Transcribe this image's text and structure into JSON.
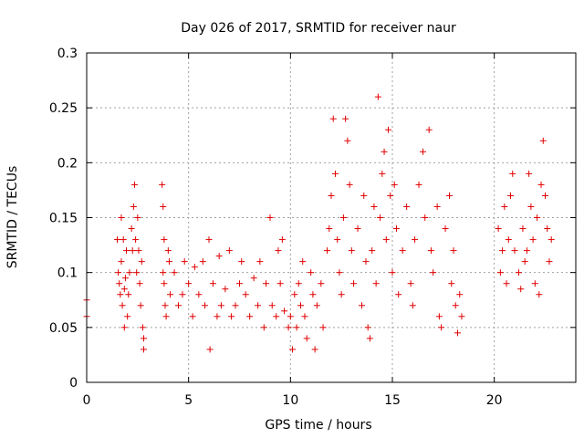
{
  "chart_data": {
    "type": "scatter",
    "title": "Day 026 of 2017, SRMTID for receiver naur",
    "xlabel": "GPS time / hours",
    "ylabel": "SRMTID / TECUs",
    "xlim": [
      0,
      24
    ],
    "ylim": [
      0,
      0.3
    ],
    "grid": true,
    "marker": "+",
    "color": "#e00000",
    "x_ticks": [
      "0",
      "5",
      "10",
      "15",
      "20"
    ],
    "x_tick_values": [
      0,
      5,
      10,
      15,
      20
    ],
    "y_ticks": [
      "0",
      "0.05",
      "0.1",
      "0.15",
      "0.2",
      "0.25",
      "0.3"
    ],
    "y_tick_values": [
      0,
      0.05,
      0.1,
      0.15,
      0.2,
      0.25,
      0.3
    ],
    "series": [
      {
        "name": "SRMTID",
        "points": [
          [
            0.0,
            0.075
          ],
          [
            0.0,
            0.06
          ],
          [
            1.5,
            0.13
          ],
          [
            1.55,
            0.1
          ],
          [
            1.6,
            0.09
          ],
          [
            1.65,
            0.08
          ],
          [
            1.7,
            0.15
          ],
          [
            1.7,
            0.11
          ],
          [
            1.75,
            0.07
          ],
          [
            1.8,
            0.13
          ],
          [
            1.85,
            0.05
          ],
          [
            1.85,
            0.085
          ],
          [
            1.9,
            0.095
          ],
          [
            1.95,
            0.12
          ],
          [
            2.0,
            0.06
          ],
          [
            2.05,
            0.08
          ],
          [
            2.1,
            0.1
          ],
          [
            2.2,
            0.14
          ],
          [
            2.25,
            0.12
          ],
          [
            2.3,
            0.16
          ],
          [
            2.35,
            0.18
          ],
          [
            2.4,
            0.13
          ],
          [
            2.45,
            0.1
          ],
          [
            2.5,
            0.15
          ],
          [
            2.55,
            0.12
          ],
          [
            2.6,
            0.09
          ],
          [
            2.65,
            0.07
          ],
          [
            2.7,
            0.11
          ],
          [
            2.75,
            0.05
          ],
          [
            2.8,
            0.03
          ],
          [
            2.8,
            0.04
          ],
          [
            3.7,
            0.18
          ],
          [
            3.75,
            0.16
          ],
          [
            3.8,
            0.13
          ],
          [
            3.75,
            0.1
          ],
          [
            3.8,
            0.09
          ],
          [
            3.85,
            0.07
          ],
          [
            3.9,
            0.06
          ],
          [
            4.0,
            0.12
          ],
          [
            4.05,
            0.11
          ],
          [
            4.1,
            0.08
          ],
          [
            4.3,
            0.1
          ],
          [
            4.5,
            0.07
          ],
          [
            4.7,
            0.08
          ],
          [
            4.8,
            0.11
          ],
          [
            5.0,
            0.09
          ],
          [
            5.2,
            0.06
          ],
          [
            5.3,
            0.105
          ],
          [
            5.5,
            0.08
          ],
          [
            5.7,
            0.11
          ],
          [
            5.8,
            0.07
          ],
          [
            6.0,
            0.13
          ],
          [
            6.05,
            0.03
          ],
          [
            6.2,
            0.09
          ],
          [
            6.4,
            0.06
          ],
          [
            6.5,
            0.115
          ],
          [
            6.6,
            0.07
          ],
          [
            6.8,
            0.085
          ],
          [
            7.0,
            0.12
          ],
          [
            7.1,
            0.06
          ],
          [
            7.3,
            0.07
          ],
          [
            7.5,
            0.09
          ],
          [
            7.6,
            0.11
          ],
          [
            7.8,
            0.08
          ],
          [
            8.0,
            0.06
          ],
          [
            8.2,
            0.095
          ],
          [
            8.4,
            0.07
          ],
          [
            8.5,
            0.11
          ],
          [
            8.7,
            0.05
          ],
          [
            8.8,
            0.09
          ],
          [
            9.0,
            0.15
          ],
          [
            9.1,
            0.07
          ],
          [
            9.3,
            0.06
          ],
          [
            9.4,
            0.12
          ],
          [
            9.5,
            0.09
          ],
          [
            9.6,
            0.13
          ],
          [
            9.7,
            0.065
          ],
          [
            9.9,
            0.05
          ],
          [
            10.0,
            0.06
          ],
          [
            10.1,
            0.03
          ],
          [
            10.2,
            0.08
          ],
          [
            10.3,
            0.05
          ],
          [
            10.4,
            0.09
          ],
          [
            10.5,
            0.07
          ],
          [
            10.6,
            0.11
          ],
          [
            10.7,
            0.06
          ],
          [
            10.8,
            0.04
          ],
          [
            11.0,
            0.1
          ],
          [
            11.1,
            0.08
          ],
          [
            11.2,
            0.03
          ],
          [
            11.3,
            0.07
          ],
          [
            11.5,
            0.09
          ],
          [
            11.6,
            0.05
          ],
          [
            11.8,
            0.12
          ],
          [
            11.9,
            0.14
          ],
          [
            12.0,
            0.17
          ],
          [
            12.1,
            0.24
          ],
          [
            12.2,
            0.19
          ],
          [
            12.3,
            0.13
          ],
          [
            12.4,
            0.1
          ],
          [
            12.5,
            0.08
          ],
          [
            12.6,
            0.15
          ],
          [
            12.7,
            0.24
          ],
          [
            12.8,
            0.22
          ],
          [
            12.9,
            0.18
          ],
          [
            13.0,
            0.12
          ],
          [
            13.1,
            0.09
          ],
          [
            13.3,
            0.14
          ],
          [
            13.5,
            0.07
          ],
          [
            13.6,
            0.17
          ],
          [
            13.7,
            0.11
          ],
          [
            13.8,
            0.05
          ],
          [
            13.9,
            0.04
          ],
          [
            14.0,
            0.12
          ],
          [
            14.1,
            0.16
          ],
          [
            14.2,
            0.09
          ],
          [
            14.3,
            0.26
          ],
          [
            14.4,
            0.15
          ],
          [
            14.5,
            0.19
          ],
          [
            14.6,
            0.21
          ],
          [
            14.7,
            0.13
          ],
          [
            14.8,
            0.23
          ],
          [
            14.9,
            0.17
          ],
          [
            15.0,
            0.1
          ],
          [
            15.1,
            0.18
          ],
          [
            15.2,
            0.14
          ],
          [
            15.3,
            0.08
          ],
          [
            15.5,
            0.12
          ],
          [
            15.7,
            0.16
          ],
          [
            15.9,
            0.09
          ],
          [
            16.0,
            0.07
          ],
          [
            16.1,
            0.13
          ],
          [
            16.3,
            0.18
          ],
          [
            16.5,
            0.21
          ],
          [
            16.6,
            0.15
          ],
          [
            16.8,
            0.23
          ],
          [
            16.9,
            0.12
          ],
          [
            17.0,
            0.1
          ],
          [
            17.2,
            0.16
          ],
          [
            17.3,
            0.06
          ],
          [
            17.4,
            0.05
          ],
          [
            17.6,
            0.14
          ],
          [
            17.8,
            0.17
          ],
          [
            17.9,
            0.09
          ],
          [
            18.0,
            0.12
          ],
          [
            18.1,
            0.07
          ],
          [
            18.2,
            0.045
          ],
          [
            18.3,
            0.08
          ],
          [
            18.4,
            0.06
          ],
          [
            20.2,
            0.14
          ],
          [
            20.3,
            0.1
          ],
          [
            20.4,
            0.12
          ],
          [
            20.5,
            0.16
          ],
          [
            20.6,
            0.09
          ],
          [
            20.7,
            0.13
          ],
          [
            20.8,
            0.17
          ],
          [
            20.9,
            0.19
          ],
          [
            21.0,
            0.12
          ],
          [
            21.2,
            0.1
          ],
          [
            21.3,
            0.085
          ],
          [
            21.4,
            0.14
          ],
          [
            21.5,
            0.11
          ],
          [
            21.6,
            0.12
          ],
          [
            21.7,
            0.19
          ],
          [
            21.8,
            0.16
          ],
          [
            21.9,
            0.13
          ],
          [
            22.0,
            0.09
          ],
          [
            22.1,
            0.15
          ],
          [
            22.2,
            0.08
          ],
          [
            22.3,
            0.18
          ],
          [
            22.4,
            0.22
          ],
          [
            22.5,
            0.17
          ],
          [
            22.6,
            0.14
          ],
          [
            22.7,
            0.11
          ],
          [
            22.8,
            0.13
          ]
        ]
      }
    ]
  }
}
